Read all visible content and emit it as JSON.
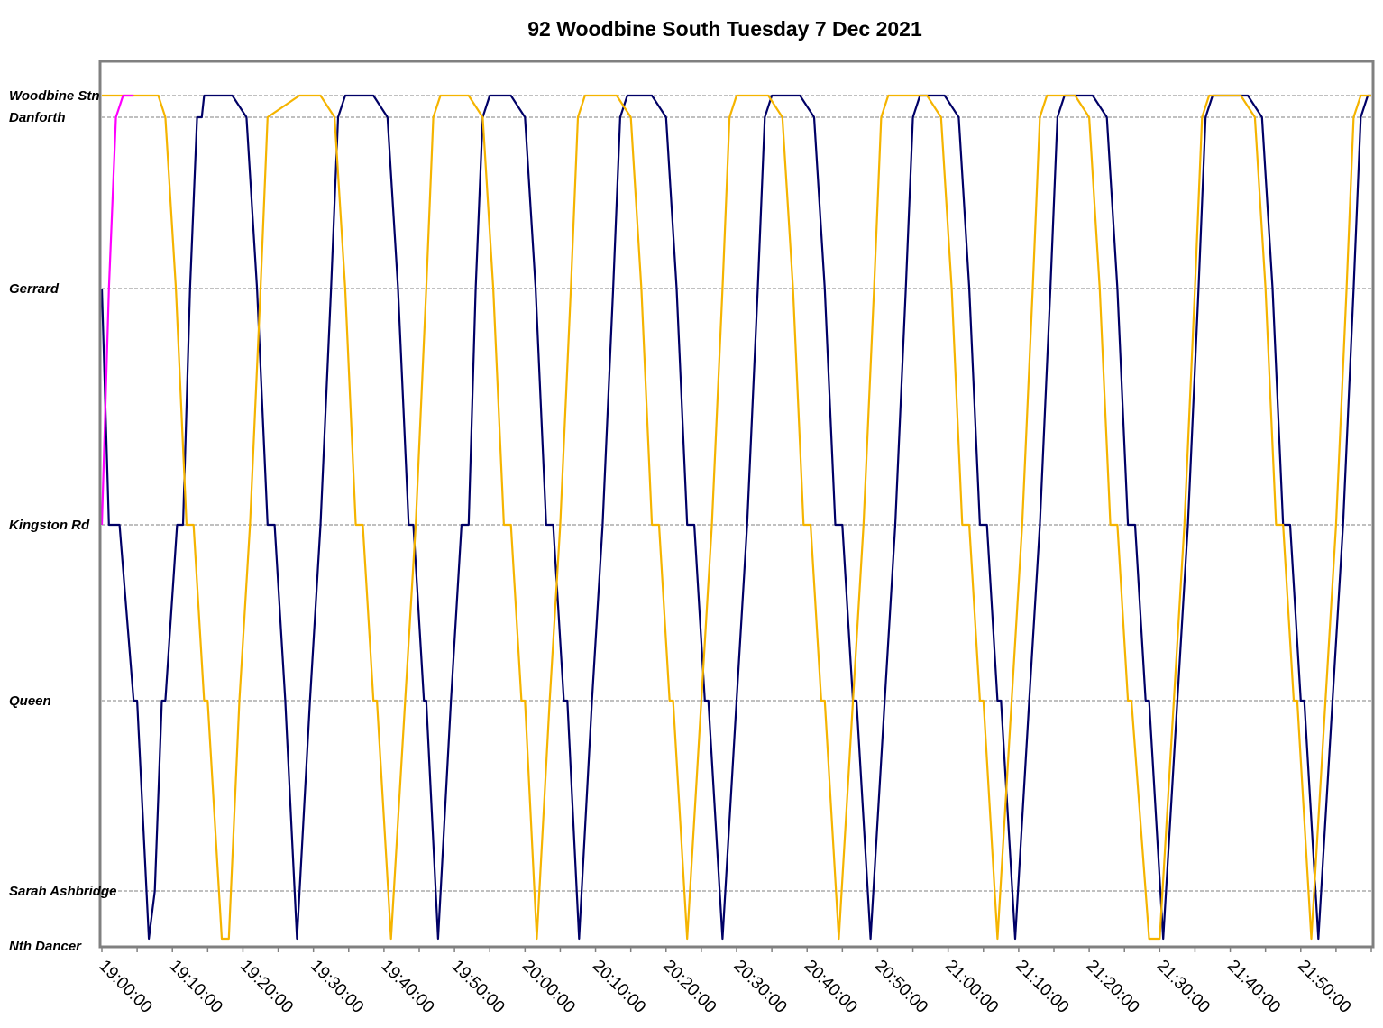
{
  "colors": {
    "background": "#ffffff",
    "axis": "#808080",
    "grid": "#808080",
    "series": [
      "#000066",
      "#f5b400",
      "#ff00ff"
    ]
  },
  "chart_data": {
    "type": "line",
    "title": "92 Woodbine South Tuesday 7 Dec 2021",
    "xlabel": "",
    "ylabel": "",
    "xlim": [
      "19:00:00",
      "22:00:00"
    ],
    "x_unit": "time of day",
    "x_tick_labels": [
      "19:00:00",
      "19:10:00",
      "19:20:00",
      "19:30:00",
      "19:40:00",
      "19:50:00",
      "20:00:00",
      "20:10:00",
      "20:20:00",
      "20:30:00",
      "20:40:00",
      "20:50:00",
      "21:00:00",
      "21:10:00",
      "21:20:00",
      "21:30:00",
      "21:40:00",
      "21:50:00"
    ],
    "y_axis": {
      "type": "stops",
      "labels": [
        "Woodbine Stn",
        "Danforth",
        "Gerrard",
        "Kingston Rd",
        "Queen",
        "Sarah Ashbridge",
        "Nth Dancer"
      ],
      "grid_lines_at": [
        "Woodbine Stn",
        "Danforth",
        "Gerrard",
        "Kingston Rd",
        "Queen",
        "Sarah Ashbridge"
      ]
    },
    "grid": true,
    "legend": "none",
    "series": [
      {
        "color": "#000066",
        "points": [
          [
            "19:00:00",
            "Gerrard"
          ],
          [
            "19:01:00",
            "Kingston Rd"
          ],
          [
            "19:02:30",
            "Kingston Rd"
          ],
          [
            "19:04:30",
            "Queen"
          ],
          [
            "19:05:00",
            "Queen"
          ],
          [
            "19:06:40",
            "Nth Dancer"
          ],
          [
            "19:07:30",
            "Sarah Ashbridge"
          ],
          [
            "19:08:30",
            "Queen"
          ],
          [
            "19:09:00",
            "Queen"
          ],
          [
            "19:10:40",
            "Kingston Rd"
          ],
          [
            "19:11:30",
            "Kingston Rd"
          ],
          [
            "19:12:30",
            "Gerrard"
          ],
          [
            "19:13:30",
            "Danforth"
          ],
          [
            "19:14:10",
            "Danforth"
          ],
          [
            "19:14:30",
            "Woodbine Stn"
          ],
          [
            "19:18:30",
            "Woodbine Stn"
          ],
          [
            "19:20:30",
            "Danforth"
          ],
          [
            "19:22:00",
            "Gerrard"
          ],
          [
            "19:23:30",
            "Kingston Rd"
          ],
          [
            "19:24:30",
            "Kingston Rd"
          ],
          [
            "19:26:00",
            "Queen"
          ],
          [
            "19:27:40",
            "Nth Dancer"
          ],
          [
            "19:29:30",
            "Queen"
          ],
          [
            "19:31:00",
            "Kingston Rd"
          ],
          [
            "19:32:30",
            "Gerrard"
          ],
          [
            "19:33:30",
            "Danforth"
          ],
          [
            "19:34:30",
            "Woodbine Stn"
          ],
          [
            "19:38:30",
            "Woodbine Stn"
          ],
          [
            "19:40:30",
            "Danforth"
          ],
          [
            "19:42:00",
            "Gerrard"
          ],
          [
            "19:43:30",
            "Kingston Rd"
          ],
          [
            "19:44:10",
            "Kingston Rd"
          ],
          [
            "19:45:40",
            "Queen"
          ],
          [
            "19:46:00",
            "Queen"
          ],
          [
            "19:47:40",
            "Nth Dancer"
          ],
          [
            "19:49:30",
            "Queen"
          ],
          [
            "19:51:00",
            "Kingston Rd"
          ],
          [
            "19:52:00",
            "Kingston Rd"
          ],
          [
            "19:53:00",
            "Gerrard"
          ],
          [
            "19:54:00",
            "Danforth"
          ],
          [
            "19:55:00",
            "Woodbine Stn"
          ],
          [
            "19:58:00",
            "Woodbine Stn"
          ],
          [
            "20:00:00",
            "Danforth"
          ],
          [
            "20:01:30",
            "Gerrard"
          ],
          [
            "20:03:00",
            "Kingston Rd"
          ],
          [
            "20:04:00",
            "Kingston Rd"
          ],
          [
            "20:05:30",
            "Queen"
          ],
          [
            "20:06:00",
            "Queen"
          ],
          [
            "20:07:40",
            "Nth Dancer"
          ],
          [
            "20:09:30",
            "Queen"
          ],
          [
            "20:11:00",
            "Kingston Rd"
          ],
          [
            "20:12:30",
            "Gerrard"
          ],
          [
            "20:13:30",
            "Danforth"
          ],
          [
            "20:14:30",
            "Woodbine Stn"
          ],
          [
            "20:18:00",
            "Woodbine Stn"
          ],
          [
            "20:20:00",
            "Danforth"
          ],
          [
            "20:21:30",
            "Gerrard"
          ],
          [
            "20:23:00",
            "Kingston Rd"
          ],
          [
            "20:24:00",
            "Kingston Rd"
          ],
          [
            "20:25:30",
            "Queen"
          ],
          [
            "20:26:00",
            "Queen"
          ],
          [
            "20:28:00",
            "Nth Dancer"
          ],
          [
            "20:30:00",
            "Queen"
          ],
          [
            "20:31:30",
            "Kingston Rd"
          ],
          [
            "20:33:00",
            "Gerrard"
          ],
          [
            "20:34:00",
            "Danforth"
          ],
          [
            "20:35:00",
            "Woodbine Stn"
          ],
          [
            "20:39:00",
            "Woodbine Stn"
          ],
          [
            "20:41:00",
            "Danforth"
          ],
          [
            "20:42:30",
            "Gerrard"
          ],
          [
            "20:44:00",
            "Kingston Rd"
          ],
          [
            "20:45:00",
            "Kingston Rd"
          ],
          [
            "20:46:30",
            "Queen"
          ],
          [
            "20:47:00",
            "Queen"
          ],
          [
            "20:49:00",
            "Nth Dancer"
          ],
          [
            "20:51:00",
            "Queen"
          ],
          [
            "20:52:30",
            "Kingston Rd"
          ],
          [
            "20:54:00",
            "Gerrard"
          ],
          [
            "20:55:00",
            "Danforth"
          ],
          [
            "20:56:00",
            "Woodbine Stn"
          ],
          [
            "20:59:30",
            "Woodbine Stn"
          ],
          [
            "21:01:30",
            "Danforth"
          ],
          [
            "21:03:00",
            "Gerrard"
          ],
          [
            "21:04:30",
            "Kingston Rd"
          ],
          [
            "21:05:30",
            "Kingston Rd"
          ],
          [
            "21:07:00",
            "Queen"
          ],
          [
            "21:07:30",
            "Queen"
          ],
          [
            "21:09:30",
            "Nth Dancer"
          ],
          [
            "21:11:30",
            "Queen"
          ],
          [
            "21:13:00",
            "Kingston Rd"
          ],
          [
            "21:14:30",
            "Gerrard"
          ],
          [
            "21:15:30",
            "Danforth"
          ],
          [
            "21:16:30",
            "Woodbine Stn"
          ],
          [
            "21:20:30",
            "Woodbine Stn"
          ],
          [
            "21:22:30",
            "Danforth"
          ],
          [
            "21:24:00",
            "Gerrard"
          ],
          [
            "21:25:30",
            "Kingston Rd"
          ],
          [
            "21:26:30",
            "Kingston Rd"
          ],
          [
            "21:28:00",
            "Queen"
          ],
          [
            "21:28:30",
            "Queen"
          ],
          [
            "21:30:30",
            "Nth Dancer"
          ],
          [
            "21:32:30",
            "Queen"
          ],
          [
            "21:34:00",
            "Kingston Rd"
          ],
          [
            "21:35:30",
            "Gerrard"
          ],
          [
            "21:36:30",
            "Danforth"
          ],
          [
            "21:37:30",
            "Woodbine Stn"
          ],
          [
            "21:42:30",
            "Woodbine Stn"
          ],
          [
            "21:44:30",
            "Danforth"
          ],
          [
            "21:46:00",
            "Gerrard"
          ],
          [
            "21:47:30",
            "Kingston Rd"
          ],
          [
            "21:48:30",
            "Kingston Rd"
          ],
          [
            "21:50:00",
            "Queen"
          ],
          [
            "21:50:30",
            "Queen"
          ],
          [
            "21:52:30",
            "Nth Dancer"
          ],
          [
            "21:54:30",
            "Queen"
          ],
          [
            "21:56:00",
            "Kingston Rd"
          ],
          [
            "21:57:30",
            "Gerrard"
          ],
          [
            "21:58:30",
            "Danforth"
          ],
          [
            "21:59:30",
            "Woodbine Stn"
          ],
          [
            "22:00:00",
            "Woodbine Stn"
          ]
        ]
      },
      {
        "color": "#f5b400",
        "points": [
          [
            "19:00:00",
            "Woodbine Stn"
          ],
          [
            "19:08:00",
            "Woodbine Stn"
          ],
          [
            "19:09:00",
            "Danforth"
          ],
          [
            "19:10:30",
            "Gerrard"
          ],
          [
            "19:12:00",
            "Kingston Rd"
          ],
          [
            "19:13:00",
            "Kingston Rd"
          ],
          [
            "19:14:30",
            "Queen"
          ],
          [
            "19:15:00",
            "Queen"
          ],
          [
            "19:17:00",
            "Nth Dancer"
          ],
          [
            "19:18:00",
            "Nth Dancer"
          ],
          [
            "19:19:30",
            "Queen"
          ],
          [
            "19:21:00",
            "Kingston Rd"
          ],
          [
            "19:22:30",
            "Gerrard"
          ],
          [
            "19:23:30",
            "Danforth"
          ],
          [
            "19:28:00",
            "Woodbine Stn"
          ],
          [
            "19:31:00",
            "Woodbine Stn"
          ],
          [
            "19:33:00",
            "Danforth"
          ],
          [
            "19:34:30",
            "Gerrard"
          ],
          [
            "19:36:00",
            "Kingston Rd"
          ],
          [
            "19:37:00",
            "Kingston Rd"
          ],
          [
            "19:38:30",
            "Queen"
          ],
          [
            "19:39:00",
            "Queen"
          ],
          [
            "19:41:00",
            "Nth Dancer"
          ],
          [
            "19:43:00",
            "Queen"
          ],
          [
            "19:44:30",
            "Kingston Rd"
          ],
          [
            "19:46:00",
            "Gerrard"
          ],
          [
            "19:47:00",
            "Danforth"
          ],
          [
            "19:48:00",
            "Woodbine Stn"
          ],
          [
            "19:52:00",
            "Woodbine Stn"
          ],
          [
            "19:54:00",
            "Danforth"
          ],
          [
            "19:55:30",
            "Gerrard"
          ],
          [
            "19:57:00",
            "Kingston Rd"
          ],
          [
            "19:58:00",
            "Kingston Rd"
          ],
          [
            "19:59:30",
            "Queen"
          ],
          [
            "20:00:00",
            "Queen"
          ],
          [
            "20:01:40",
            "Nth Dancer"
          ],
          [
            "20:03:30",
            "Queen"
          ],
          [
            "20:05:00",
            "Kingston Rd"
          ],
          [
            "20:06:30",
            "Gerrard"
          ],
          [
            "20:07:30",
            "Danforth"
          ],
          [
            "20:08:30",
            "Woodbine Stn"
          ],
          [
            "20:13:00",
            "Woodbine Stn"
          ],
          [
            "20:15:00",
            "Danforth"
          ],
          [
            "20:16:30",
            "Gerrard"
          ],
          [
            "20:18:00",
            "Kingston Rd"
          ],
          [
            "20:19:00",
            "Kingston Rd"
          ],
          [
            "20:20:30",
            "Queen"
          ],
          [
            "20:21:00",
            "Queen"
          ],
          [
            "20:23:00",
            "Nth Dancer"
          ],
          [
            "20:25:00",
            "Queen"
          ],
          [
            "20:26:30",
            "Kingston Rd"
          ],
          [
            "20:28:00",
            "Gerrard"
          ],
          [
            "20:29:00",
            "Danforth"
          ],
          [
            "20:30:00",
            "Woodbine Stn"
          ],
          [
            "20:34:30",
            "Woodbine Stn"
          ],
          [
            "20:36:30",
            "Danforth"
          ],
          [
            "20:38:00",
            "Gerrard"
          ],
          [
            "20:39:30",
            "Kingston Rd"
          ],
          [
            "20:40:30",
            "Kingston Rd"
          ],
          [
            "20:42:00",
            "Queen"
          ],
          [
            "20:42:30",
            "Queen"
          ],
          [
            "20:44:30",
            "Nth Dancer"
          ],
          [
            "20:46:30",
            "Queen"
          ],
          [
            "20:48:00",
            "Kingston Rd"
          ],
          [
            "20:49:30",
            "Gerrard"
          ],
          [
            "20:50:30",
            "Danforth"
          ],
          [
            "20:51:30",
            "Woodbine Stn"
          ],
          [
            "20:57:00",
            "Woodbine Stn"
          ],
          [
            "20:59:00",
            "Danforth"
          ],
          [
            "21:00:30",
            "Gerrard"
          ],
          [
            "21:02:00",
            "Kingston Rd"
          ],
          [
            "21:03:00",
            "Kingston Rd"
          ],
          [
            "21:04:30",
            "Queen"
          ],
          [
            "21:05:00",
            "Queen"
          ],
          [
            "21:07:00",
            "Nth Dancer"
          ],
          [
            "21:09:00",
            "Queen"
          ],
          [
            "21:10:30",
            "Kingston Rd"
          ],
          [
            "21:12:00",
            "Gerrard"
          ],
          [
            "21:13:00",
            "Danforth"
          ],
          [
            "21:14:00",
            "Woodbine Stn"
          ],
          [
            "21:18:00",
            "Woodbine Stn"
          ],
          [
            "21:20:00",
            "Danforth"
          ],
          [
            "21:21:30",
            "Gerrard"
          ],
          [
            "21:23:00",
            "Kingston Rd"
          ],
          [
            "21:24:00",
            "Kingston Rd"
          ],
          [
            "21:25:30",
            "Queen"
          ],
          [
            "21:26:00",
            "Queen"
          ],
          [
            "21:28:30",
            "Nth Dancer"
          ],
          [
            "21:30:00",
            "Nth Dancer"
          ],
          [
            "21:32:00",
            "Queen"
          ],
          [
            "21:33:30",
            "Kingston Rd"
          ],
          [
            "21:35:00",
            "Gerrard"
          ],
          [
            "21:36:00",
            "Danforth"
          ],
          [
            "21:37:00",
            "Woodbine Stn"
          ],
          [
            "21:41:30",
            "Woodbine Stn"
          ],
          [
            "21:43:30",
            "Danforth"
          ],
          [
            "21:45:00",
            "Gerrard"
          ],
          [
            "21:46:30",
            "Kingston Rd"
          ],
          [
            "21:47:30",
            "Kingston Rd"
          ],
          [
            "21:49:00",
            "Queen"
          ],
          [
            "21:49:30",
            "Queen"
          ],
          [
            "21:51:30",
            "Nth Dancer"
          ],
          [
            "21:53:30",
            "Queen"
          ],
          [
            "21:55:00",
            "Kingston Rd"
          ],
          [
            "21:56:30",
            "Gerrard"
          ],
          [
            "21:57:30",
            "Danforth"
          ],
          [
            "21:58:30",
            "Woodbine Stn"
          ],
          [
            "22:00:00",
            "Woodbine Stn"
          ]
        ]
      },
      {
        "color": "#ff00ff",
        "points": [
          [
            "19:00:00",
            "Kingston Rd"
          ],
          [
            "19:01:00",
            "Gerrard"
          ],
          [
            "19:02:00",
            "Danforth"
          ],
          [
            "19:03:00",
            "Woodbine Stn"
          ],
          [
            "19:04:30",
            "Woodbine Stn"
          ]
        ]
      }
    ]
  }
}
